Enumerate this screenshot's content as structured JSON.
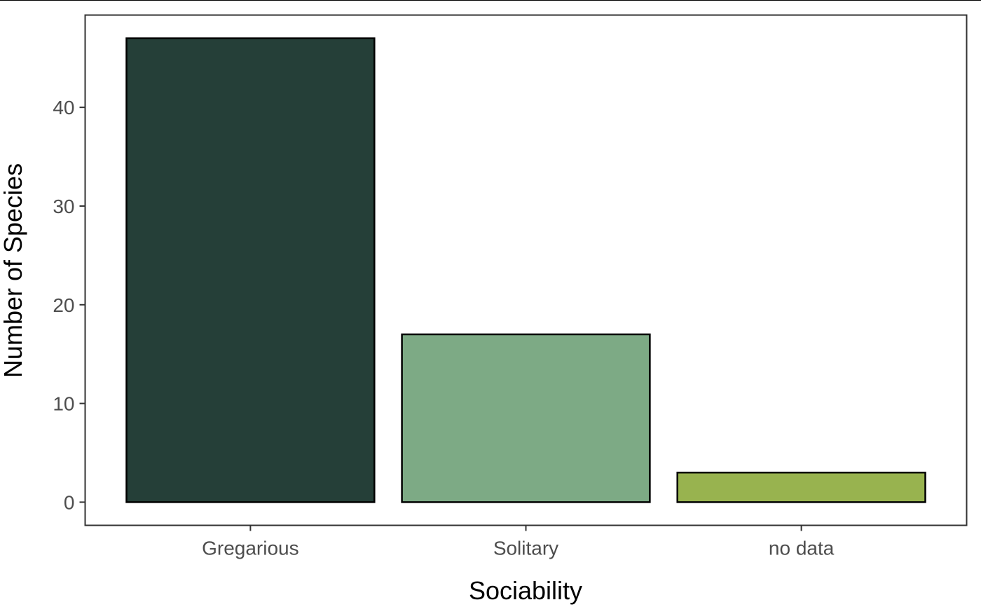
{
  "chart_data": {
    "type": "bar",
    "categories": [
      "Gregarious",
      "Solitary",
      "no data"
    ],
    "values": [
      47,
      17,
      3
    ],
    "colors": [
      "#253f38",
      "#7daa85",
      "#98b34f"
    ],
    "bar_outline_color": "#000000",
    "panel_border_color": "#333333",
    "tick_label_color": "#4d4d4d",
    "xlabel": "Sociability",
    "ylabel": "Number of Species",
    "yticks": [
      0,
      10,
      20,
      30,
      40
    ],
    "ylim": [
      -2.35,
      49.35
    ],
    "grid": false,
    "legend": "none"
  }
}
